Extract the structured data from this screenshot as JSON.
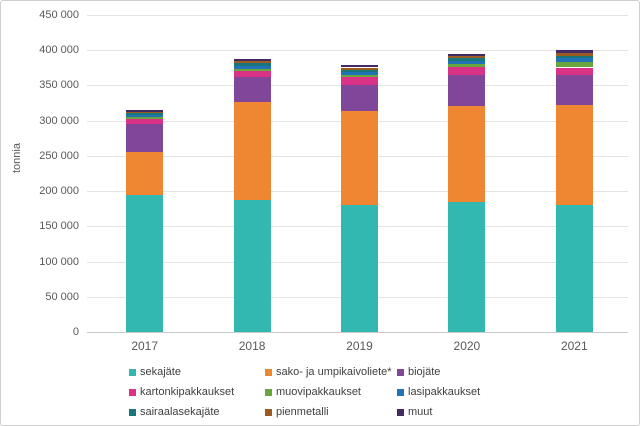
{
  "chart_data": {
    "type": "bar",
    "stacked": true,
    "title": "",
    "xlabel": "",
    "ylabel": "tonnia",
    "ylim": [
      0,
      450000
    ],
    "ytick_step": 50000,
    "y_tick_labels": [
      "0",
      "50 000",
      "100 000",
      "150 000",
      "200 000",
      "250 000",
      "300 000",
      "350 000",
      "400 000",
      "450 000"
    ],
    "grid": "horizontal",
    "legend_position": "bottom",
    "categories": [
      "2017",
      "2018",
      "2019",
      "2020",
      "2021"
    ],
    "series": [
      {
        "name": "sekajäte",
        "color": "#33b7b1",
        "values": [
          195000,
          188000,
          181000,
          185000,
          180000
        ]
      },
      {
        "name": "sako- ja umpikaivoliete*",
        "color": "#ef8632",
        "values": [
          61000,
          138000,
          133000,
          136000,
          142000
        ]
      },
      {
        "name": "biojäte",
        "color": "#7f4699",
        "values": [
          40000,
          36000,
          37000,
          44000,
          43000
        ]
      },
      {
        "name": "kartonkipakkaukset",
        "color": "#d93287",
        "values": [
          7000,
          8500,
          10500,
          11000,
          10500
        ]
      },
      {
        "name": "muovipakkaukset",
        "color": "#68a63d",
        "values": [
          2000,
          3000,
          3000,
          4000,
          8500
        ]
      },
      {
        "name": "lasipakkaukset",
        "color": "#2273b5",
        "values": [
          3000,
          4000,
          4000,
          4500,
          4500
        ]
      },
      {
        "name": "sairaalasekajäte",
        "color": "#18767c",
        "values": [
          3000,
          4000,
          3500,
          4000,
          4000
        ]
      },
      {
        "name": "pienmetalli",
        "color": "#9a5c20",
        "values": [
          1500,
          3000,
          3500,
          3500,
          3500
        ]
      },
      {
        "name": "muut",
        "color": "#432a63",
        "values": [
          3000,
          3000,
          3500,
          3000,
          5000
        ]
      }
    ]
  }
}
